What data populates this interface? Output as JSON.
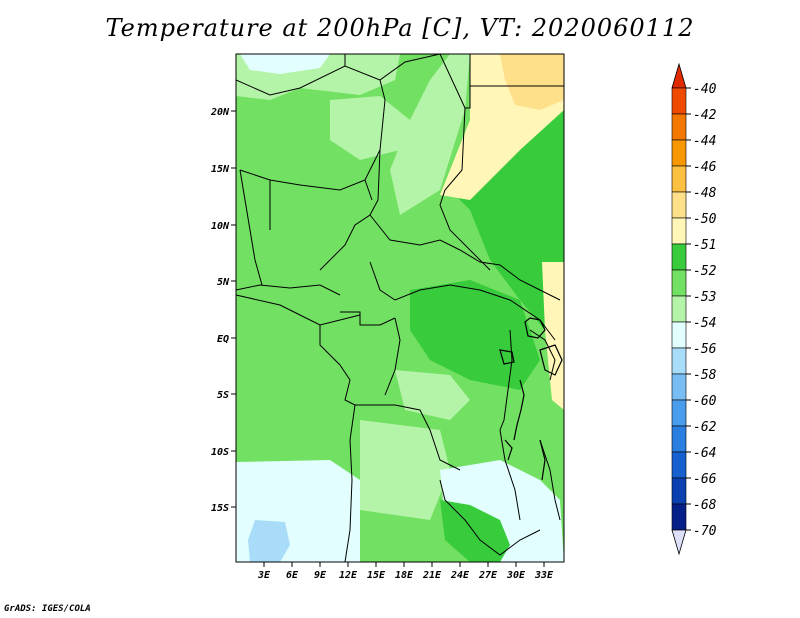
{
  "title": "Temperature at 200hPa [C], VT: 2020060112",
  "credit": "GrADS: IGES/COLA",
  "map": {
    "lat_ticks": [
      "20N",
      "15N",
      "10N",
      "5N",
      "EQ",
      "5S",
      "10S",
      "15S"
    ],
    "lon_ticks": [
      "3E",
      "6E",
      "9E",
      "12E",
      "15E",
      "18E",
      "21E",
      "24E",
      "27E",
      "30E",
      "33E"
    ]
  },
  "colorbar": {
    "levels": [
      {
        "label": "-40",
        "color": "#ee2200"
      },
      {
        "label": "-42",
        "color": "#f04a00"
      },
      {
        "label": "-44",
        "color": "#f47800"
      },
      {
        "label": "-46",
        "color": "#f79800"
      },
      {
        "label": "-48",
        "color": "#fbc040"
      },
      {
        "label": "-50",
        "color": "#fee08a"
      },
      {
        "label": "-51",
        "color": "#fff6b8"
      },
      {
        "label": "-52",
        "color": "#38cc3c"
      },
      {
        "label": "-53",
        "color": "#72e062"
      },
      {
        "label": "-54",
        "color": "#b4f4a8"
      },
      {
        "label": "-56",
        "color": "#e2feff"
      },
      {
        "label": "-58",
        "color": "#a8dcf8"
      },
      {
        "label": "-60",
        "color": "#78bef4"
      },
      {
        "label": "-62",
        "color": "#4a9cec"
      },
      {
        "label": "-64",
        "color": "#2a7ee0"
      },
      {
        "label": "-66",
        "color": "#1660d0"
      },
      {
        "label": "-68",
        "color": "#0a40b0"
      },
      {
        "label": "-70",
        "color": "#06208a"
      }
    ],
    "top_arrow_color": "#e02a00",
    "bottom_arrow_color": "#dde0f8"
  }
}
